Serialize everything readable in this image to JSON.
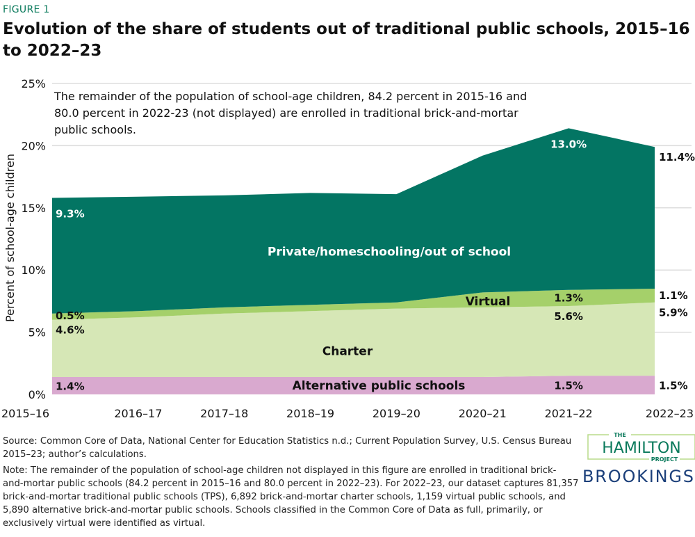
{
  "figure_label": "FIGURE 1",
  "title": "Evolution of the share of students out of traditional public schools, 2015–16 to 2022–23",
  "annotation": "The remainder of the population of school-age children, 84.2 percent in 2015-16 and 80.0 percent in 2022-23 (not displayed) are enrolled in traditional brick-and-mortar public schools.",
  "source": "Source: Common Core of Data, National Center for Education Statistics n.d.; Current Population Survey, U.S. Census Bureau 2015–23; author’s calculations.",
  "note": "Note: The remainder of the population of school-age children not displayed in this figure are enrolled in traditional brick- and-mortar public schools (84.2 percent in 2015–16 and 80.0 percent in 2022–23). For 2022–23, our dataset captures 81,357 brick-and-mortar traditional public schools (TPS), 6,892 brick-and-mortar charter schools, 1,159 virtual public schools, and 5,890 alternative brick-and-mortar public schools. Schools classified in the Common Core of Data as full, primarily, or exclusively virtual were identified as virtual.",
  "logos": {
    "hamilton": "THE HAMILTON PROJECT",
    "brookings": "BROOKINGS"
  },
  "chart_data": {
    "type": "area",
    "stacked": true,
    "ylabel": "Percent of school-age children",
    "xlabel": "",
    "ylim": [
      0,
      25
    ],
    "yticks": [
      "0%",
      "5%",
      "10%",
      "15%",
      "20%",
      "25%"
    ],
    "grid": true,
    "categories": [
      "2015–16",
      "2016–17",
      "2017–18",
      "2018–19",
      "2019–20",
      "2020–21",
      "2021–22",
      "2022–23"
    ],
    "series": [
      {
        "name": "Alternative public schools",
        "color": "#d9a9cf",
        "values": [
          1.4,
          1.4,
          1.4,
          1.4,
          1.4,
          1.4,
          1.5,
          1.5
        ],
        "labels": [
          {
            "i": 0,
            "text": "1.4%"
          },
          {
            "i": 6,
            "text": "1.5%"
          },
          {
            "i": 7,
            "text": "1.5%"
          }
        ]
      },
      {
        "name": "Charter",
        "color": "#d6e7b6",
        "values": [
          4.6,
          4.8,
          5.1,
          5.3,
          5.5,
          5.6,
          5.6,
          5.9
        ],
        "labels": [
          {
            "i": 0,
            "text": "4.6%"
          },
          {
            "i": 6,
            "text": "5.6%"
          },
          {
            "i": 7,
            "text": "5.9%"
          }
        ]
      },
      {
        "name": "Virtual",
        "color": "#a5d06a",
        "values": [
          0.5,
          0.5,
          0.5,
          0.5,
          0.5,
          1.2,
          1.3,
          1.1
        ],
        "labels": [
          {
            "i": 0,
            "text": "0.5%"
          },
          {
            "i": 6,
            "text": "1.3%"
          },
          {
            "i": 7,
            "text": "1.1%"
          }
        ]
      },
      {
        "name": "Private/homeschooling/out of school",
        "color": "#037563",
        "values": [
          9.3,
          9.2,
          9.0,
          9.0,
          8.7,
          11.0,
          13.0,
          11.4
        ],
        "labels": [
          {
            "i": 0,
            "text": "9.3%"
          },
          {
            "i": 6,
            "text": "13.0%"
          },
          {
            "i": 7,
            "text": "11.4%"
          }
        ]
      }
    ]
  }
}
